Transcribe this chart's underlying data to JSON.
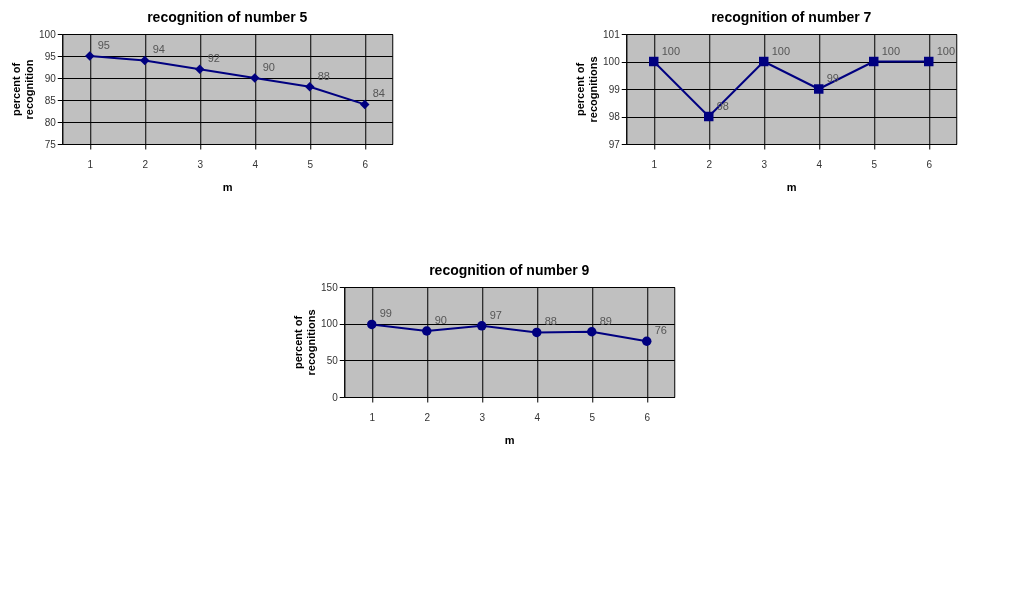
{
  "chart_data": [
    {
      "type": "line",
      "title": "recognition of number 5",
      "xlabel": "m",
      "ylabel": "percent of recognition",
      "categories": [
        "1",
        "2",
        "3",
        "4",
        "5",
        "6"
      ],
      "series": [
        {
          "color": "#000080",
          "values": [
            95,
            94,
            92,
            90,
            88,
            84
          ]
        }
      ],
      "ylim": [
        75,
        100
      ],
      "yticks": [
        75,
        80,
        85,
        90,
        95,
        100
      ],
      "marker": "diamond",
      "grid": true,
      "legend": false,
      "data_labels": true
    },
    {
      "type": "line",
      "title": "recognition of number 7",
      "xlabel": "m",
      "ylabel": "percent of recognitions",
      "categories": [
        "1",
        "2",
        "3",
        "4",
        "5",
        "6"
      ],
      "series": [
        {
          "color": "#000080",
          "values": [
            100,
            98,
            100,
            99,
            100,
            100
          ]
        }
      ],
      "ylim": [
        97,
        101
      ],
      "yticks": [
        97,
        98,
        99,
        100,
        101
      ],
      "marker": "square",
      "grid": true,
      "legend": false,
      "data_labels": true
    },
    {
      "type": "line",
      "title": "recognition of number 9",
      "xlabel": "m",
      "ylabel": "percent of recognitions",
      "categories": [
        "1",
        "2",
        "3",
        "4",
        "5",
        "6"
      ],
      "series": [
        {
          "color": "#000080",
          "values": [
            99,
            90,
            97,
            88,
            89,
            76
          ]
        }
      ],
      "ylim": [
        0,
        150
      ],
      "yticks": [
        0,
        50,
        100,
        150
      ],
      "marker": "circle",
      "grid": true,
      "legend": false,
      "data_labels": true
    }
  ]
}
